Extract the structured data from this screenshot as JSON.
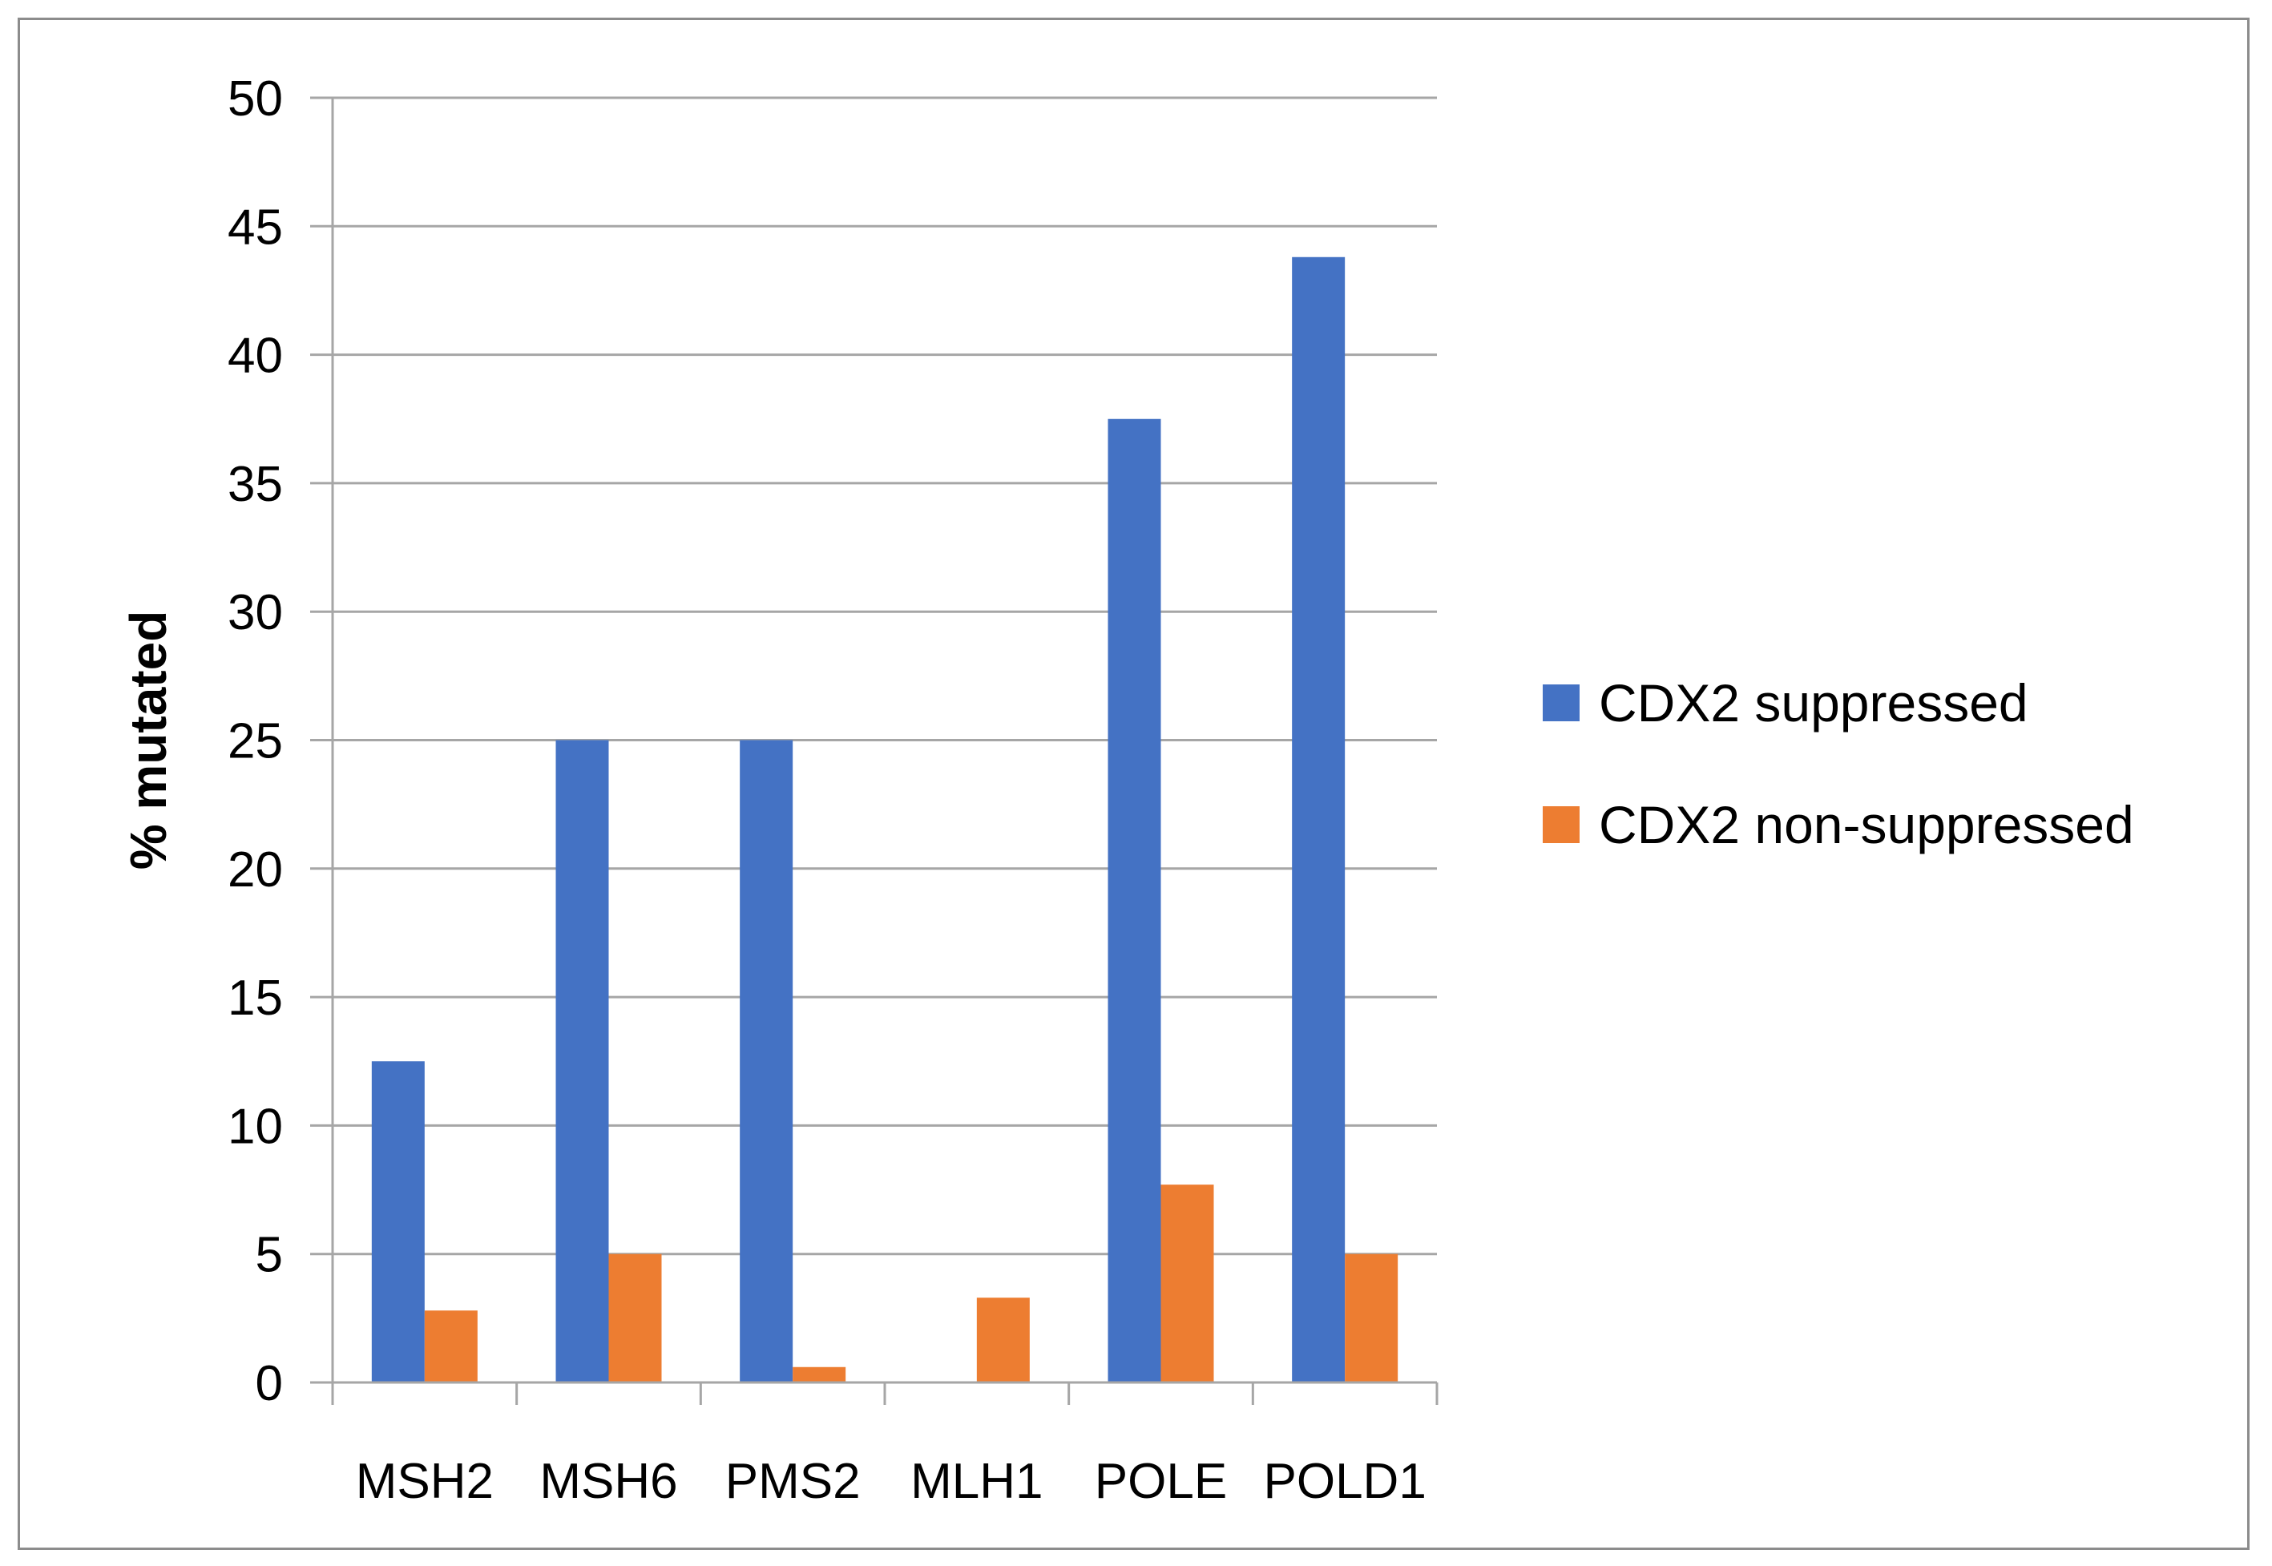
{
  "chart_data": {
    "type": "bar",
    "categories": [
      "MSH2",
      "MSH6",
      "PMS2",
      "MLH1",
      "POLE",
      "POLD1"
    ],
    "series": [
      {
        "name": "CDX2 suppressed",
        "color": "#4472C4",
        "values": [
          12.5,
          25,
          25,
          0,
          37.5,
          43.8
        ]
      },
      {
        "name": "CDX2 non-suppressed",
        "color": "#ED7D31",
        "values": [
          2.8,
          5,
          0.6,
          3.3,
          7.7,
          5
        ]
      }
    ],
    "title": "",
    "xlabel": "",
    "ylabel": "% mutated",
    "ylim": [
      0,
      50
    ],
    "yticks": [
      0,
      5,
      10,
      15,
      20,
      25,
      30,
      35,
      40,
      45,
      50
    ],
    "grid": true,
    "gridline_color": "#A6A6A6",
    "legend_position": "right"
  }
}
